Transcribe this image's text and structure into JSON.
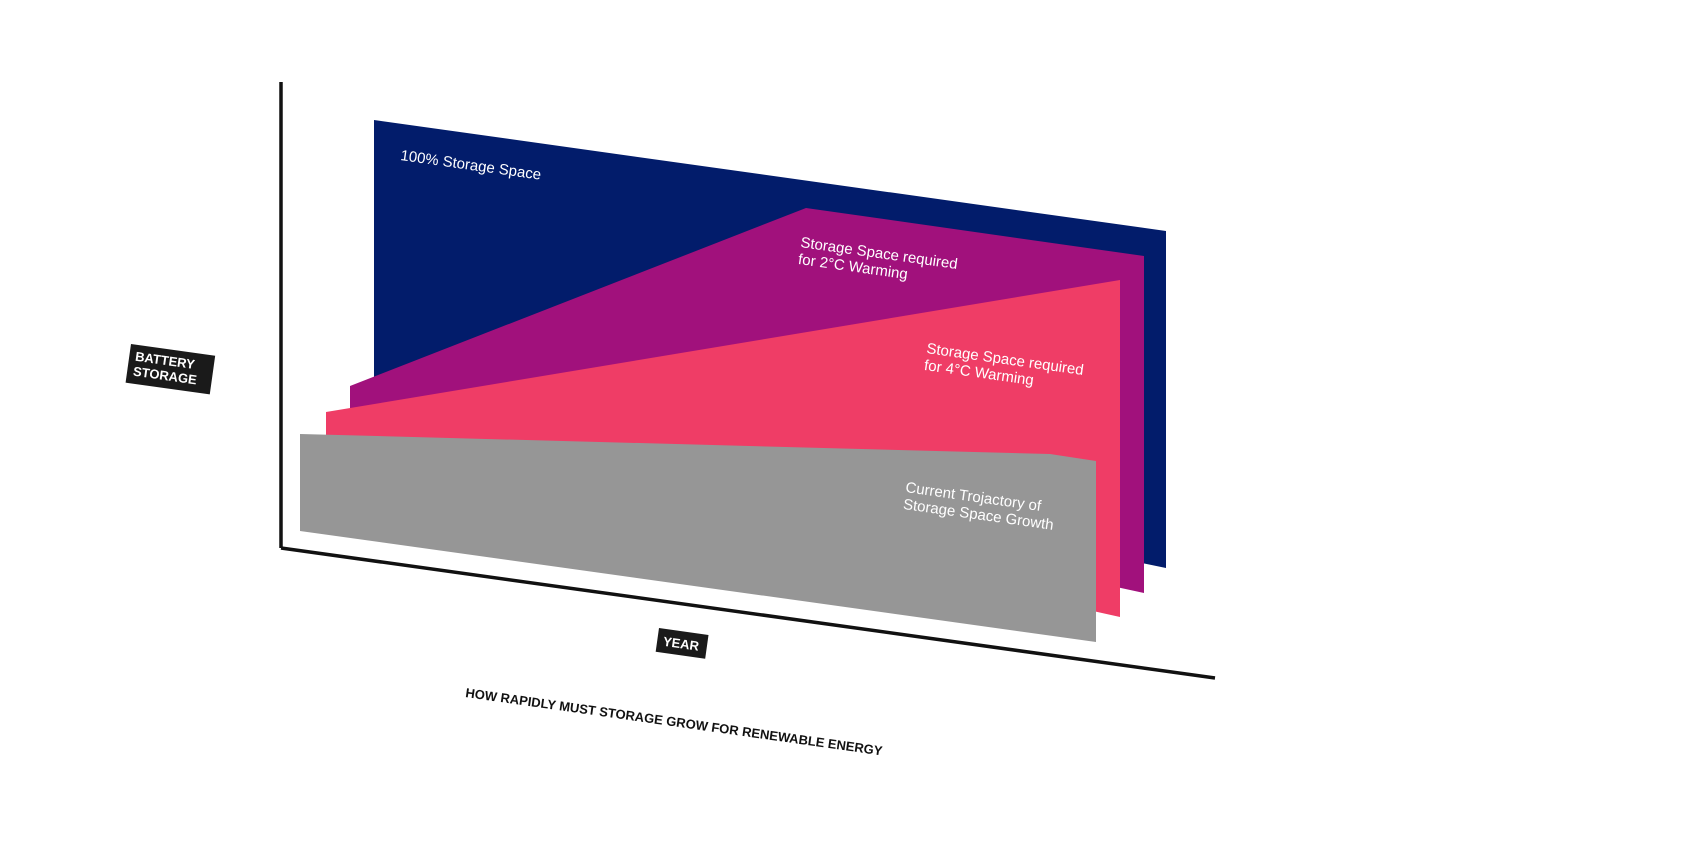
{
  "figure": {
    "caption": "HOW RAPIDLY MUST STORAGE GROW FOR RENEWABLE ENERGY",
    "y_axis_badge": [
      "BATTERY",
      "STORAGE"
    ],
    "x_axis_badge": "YEAR"
  },
  "layers": [
    {
      "id": "full",
      "label_lines": [
        "100% Storage Space"
      ],
      "color": "#021C6B"
    },
    {
      "id": "two-degree",
      "label_lines": [
        "Storage Space required",
        "for 2°C Warming"
      ],
      "color": "#A1117C"
    },
    {
      "id": "four-degree",
      "label_lines": [
        "Storage Space required",
        "for 4°C Warming"
      ],
      "color": "#EF3D66"
    },
    {
      "id": "current",
      "label_lines": [
        "Current Trojactory of",
        "Storage Space Growth"
      ],
      "color": "#969696"
    }
  ],
  "colors": {
    "axis": "#111111",
    "badge_background": "#1a1a1a"
  }
}
